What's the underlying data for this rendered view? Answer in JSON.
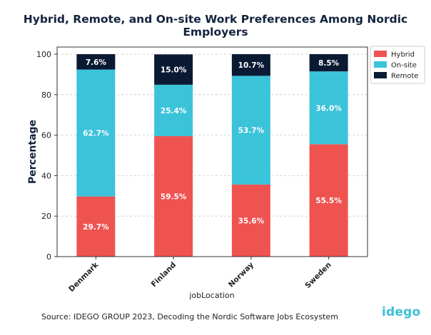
{
  "title": "Hybrid, Remote, and On-site Work Preferences Among Nordic Employers",
  "source": "Source: IDEGO GROUP 2023, Decoding the Nordic Software Jobs Ecosystem",
  "brand": "idego",
  "colors": {
    "Hybrid": "#ef5350",
    "On-site": "#3bc3da",
    "Remote": "#0b1a33"
  },
  "chart_data": {
    "type": "bar",
    "stacked": true,
    "categories": [
      "Denmark",
      "Finland",
      "Norway",
      "Sweden"
    ],
    "series": [
      {
        "name": "Hybrid",
        "values": [
          29.7,
          59.5,
          35.6,
          55.5
        ]
      },
      {
        "name": "On-site",
        "values": [
          62.7,
          25.4,
          53.7,
          36.0
        ]
      },
      {
        "name": "Remote",
        "values": [
          7.6,
          15.0,
          10.7,
          8.5
        ]
      }
    ],
    "data_labels": [
      [
        "29.7%",
        "59.5%",
        "35.6%",
        "55.5%"
      ],
      [
        "62.7%",
        "25.4%",
        "53.7%",
        "36.0%"
      ],
      [
        "7.6%",
        "15.0%",
        "10.7%",
        "8.5%"
      ]
    ],
    "xlabel": "jobLocation",
    "ylabel": "Percentage",
    "ylim": [
      0,
      100
    ],
    "yticks": [
      0,
      20,
      40,
      60,
      80,
      100
    ],
    "grid": "horizontal dashed",
    "legend": "top-right"
  }
}
